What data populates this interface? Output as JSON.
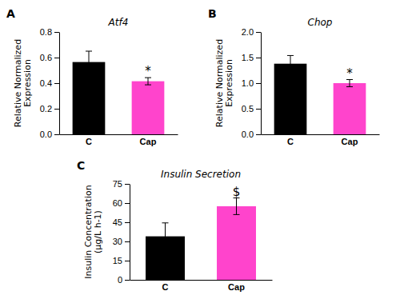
{
  "chart_data": [
    {
      "type": "bar",
      "title": "Atf4",
      "label": "A",
      "categories": [
        "C",
        "Cap"
      ],
      "values": [
        0.565,
        0.415
      ],
      "errors": [
        0.085,
        0.028
      ],
      "colors": [
        "#000000",
        "#FF44CC"
      ],
      "ylim": [
        0,
        0.8
      ],
      "yticks": [
        {
          "value": 0,
          "label": "0.0"
        },
        0.2,
        0.4,
        0.6,
        0.8
      ],
      "ylabel": "Relative Normalized\nExpression",
      "annotations": [
        {
          "category": "Cap",
          "text": "*"
        }
      ]
    },
    {
      "type": "bar",
      "title": "Chop",
      "label": "B",
      "categories": [
        "C",
        "Cap"
      ],
      "values": [
        1.38,
        1.0
      ],
      "errors": [
        0.16,
        0.07
      ],
      "colors": [
        "#000000",
        "#FF44CC"
      ],
      "ylim": [
        0,
        2.0
      ],
      "yticks": [
        {
          "value": 0,
          "label": "0.0"
        },
        0.5,
        {
          "value": 1,
          "label": "1.0"
        },
        1.5,
        {
          "value": 2,
          "label": "2.0"
        }
      ],
      "ylabel": "Relative Normalized\nExpression",
      "annotations": [
        {
          "category": "Cap",
          "text": "*"
        }
      ]
    },
    {
      "type": "bar",
      "title": "Insulin Secretion",
      "label": "C",
      "categories": [
        "C",
        "Cap"
      ],
      "values": [
        34.0,
        57.5
      ],
      "errors": [
        10.5,
        6.5
      ],
      "colors": [
        "#000000",
        "#FF44CC"
      ],
      "ylim": [
        0,
        75
      ],
      "yticks": [
        0,
        15,
        30,
        45,
        60,
        75
      ],
      "ylabel": "Insulin Concentration\n(µg/L h-1)",
      "annotations": [
        {
          "category": "Cap",
          "text": "$"
        }
      ]
    }
  ]
}
